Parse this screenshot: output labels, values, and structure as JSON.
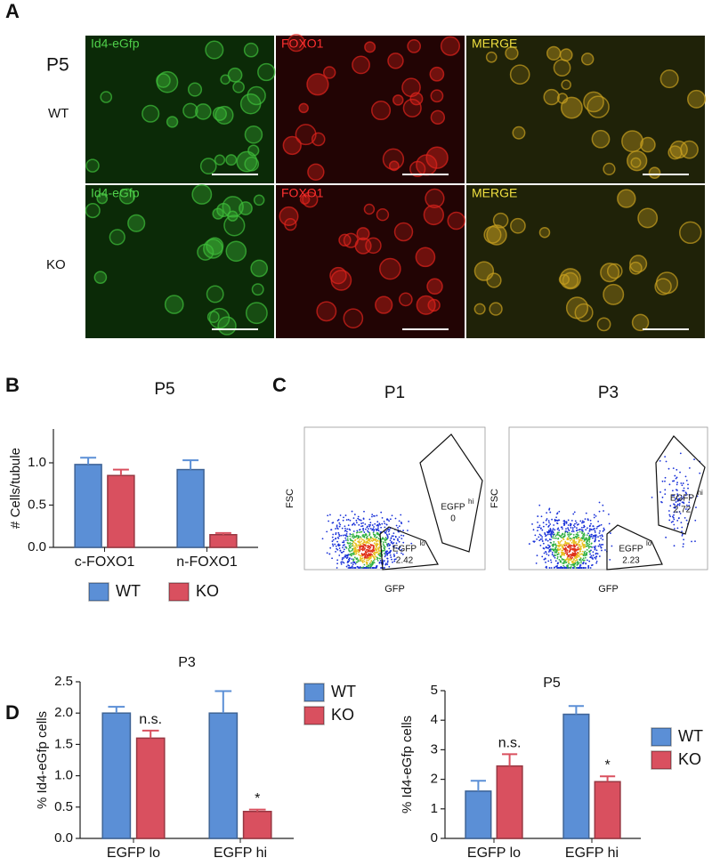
{
  "panels": {
    "a": {
      "label": "A",
      "age": "P5",
      "rows": [
        "WT",
        "KO"
      ],
      "columns": [
        "Id4-eGfp",
        "FOXO1",
        "MERGE"
      ]
    },
    "b": {
      "label": "B"
    },
    "c": {
      "label": "C",
      "plots": [
        {
          "title": "P1",
          "y_label": "FSC",
          "x_label": "GFP",
          "gates": [
            {
              "name": "EGFP",
              "sup": "hi",
              "value": "0"
            },
            {
              "name": "EGFP",
              "sup": "lo",
              "value": "2.42"
            }
          ]
        },
        {
          "title": "P3",
          "y_label": "FSC",
          "x_label": "GFP",
          "gates": [
            {
              "name": "EGFP",
              "sup": "hi",
              "value": "2.72"
            },
            {
              "name": "EGFP",
              "sup": "lo",
              "value": "2.23"
            }
          ]
        }
      ]
    },
    "d": {
      "label": "D"
    }
  },
  "chart_data": [
    {
      "type": "bar",
      "title": "P5",
      "y_label": "# Cells/tubule",
      "categories": [
        "c-FOXO1",
        "n-FOXO1"
      ],
      "legend": "bottom",
      "series": [
        {
          "name": "WT",
          "color": "#5b8fd6",
          "values": [
            0.98,
            0.92
          ],
          "errors": [
            0.08,
            0.11
          ]
        },
        {
          "name": "KO",
          "color": "#d9505f",
          "values": [
            0.85,
            0.15
          ],
          "errors": [
            0.07,
            0.02
          ]
        }
      ],
      "ylim": [
        0,
        1.4
      ],
      "yticks": [
        {
          "value": 0,
          "label": "0.0"
        },
        {
          "value": 0.5,
          "label": "0.5"
        },
        {
          "value": 1,
          "label": "1.0"
        }
      ]
    },
    {
      "type": "bar",
      "title": "P3",
      "y_label": "% Id4-eGfp cells",
      "categories": [
        "EGFP lo",
        "EGFP hi"
      ],
      "legend": "right",
      "series": [
        {
          "name": "WT",
          "color": "#5b8fd6",
          "values": [
            2.0,
            2.0
          ],
          "errors": [
            0.1,
            0.35
          ]
        },
        {
          "name": "KO",
          "color": "#d9505f",
          "values": [
            1.6,
            0.43
          ],
          "errors": [
            0.12,
            0.03
          ],
          "annotations": [
            "n.s.",
            "*"
          ]
        }
      ],
      "ylim": [
        0,
        2.5
      ],
      "yticks": [
        {
          "value": 0,
          "label": "0.0"
        },
        {
          "value": 0.5,
          "label": "0.5"
        },
        {
          "value": 1,
          "label": "1.0"
        },
        {
          "value": 1.5,
          "label": "1.5"
        },
        {
          "value": 2,
          "label": "2.0"
        },
        {
          "value": 2.5,
          "label": "2.5"
        }
      ]
    },
    {
      "type": "bar",
      "title": "P5",
      "y_label": "% Id4-eGfp cells",
      "categories": [
        "EGFP lo",
        "EGFP hi"
      ],
      "legend": "right",
      "series": [
        {
          "name": "WT",
          "color": "#5b8fd6",
          "values": [
            1.6,
            4.2
          ],
          "errors": [
            0.35,
            0.28
          ]
        },
        {
          "name": "KO",
          "color": "#d9505f",
          "values": [
            2.45,
            1.92
          ],
          "errors": [
            0.4,
            0.18
          ],
          "annotations": [
            "n.s.",
            "*"
          ]
        }
      ],
      "ylim": [
        0,
        5
      ],
      "yticks": [
        0,
        1,
        2,
        3,
        4,
        5
      ]
    }
  ]
}
